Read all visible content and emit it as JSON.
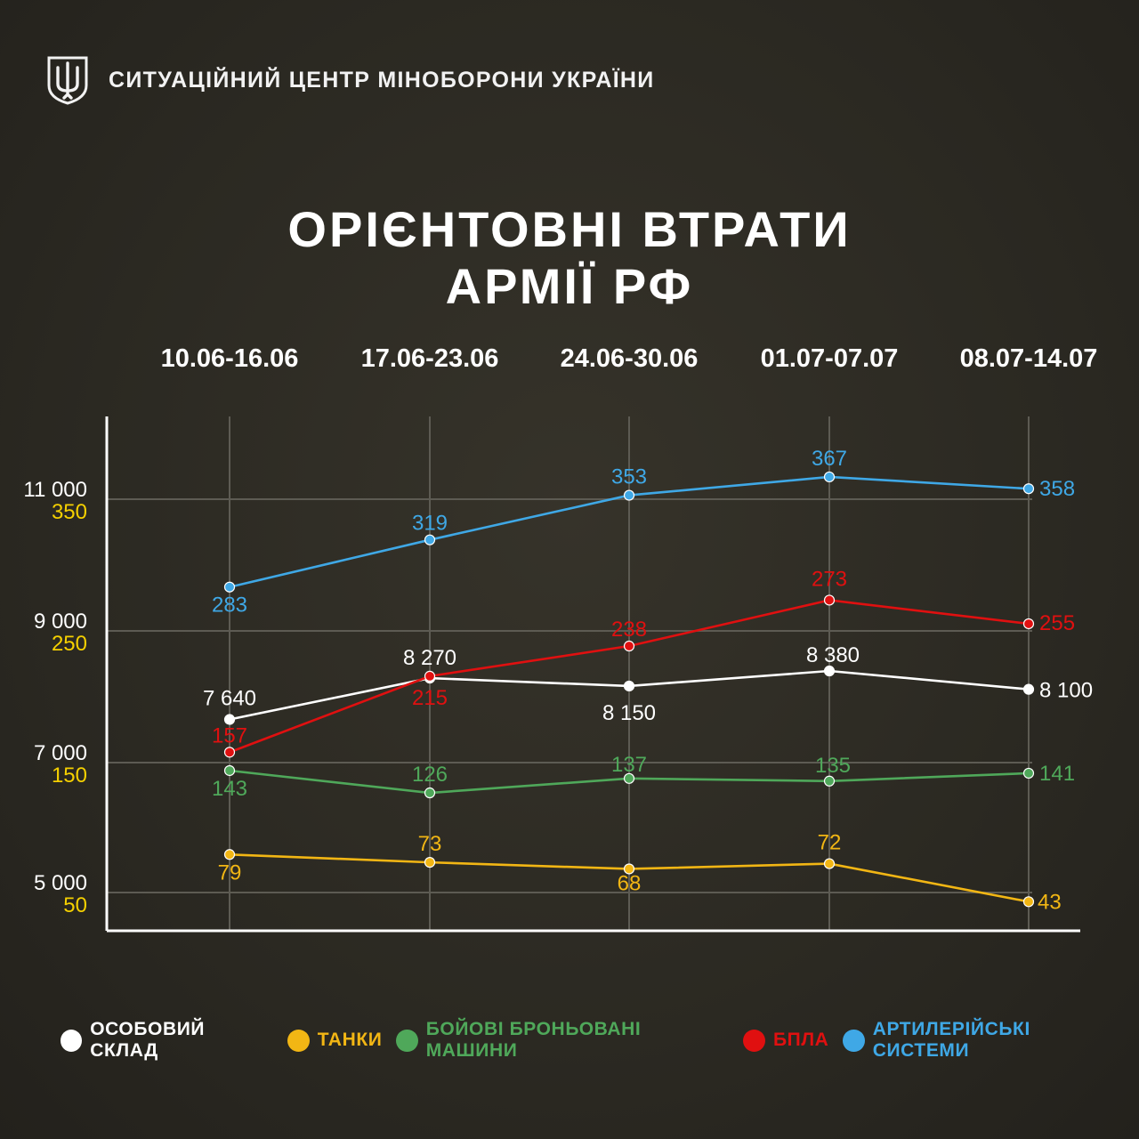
{
  "header": {
    "org_name": "СИТУАЦІЙНИЙ ЦЕНТР МІНОБОРОНИ УКРАЇНИ",
    "emblem_icon": "trident-shield-icon"
  },
  "title": {
    "line1": "ОРІЄНТОВНІ ВТРАТИ",
    "line2": "АРМІЇ РФ"
  },
  "chart_data": {
    "type": "line",
    "categories": [
      "10.06-16.06",
      "17.06-23.06",
      "24.06-30.06",
      "01.07-07.07",
      "08.07-14.07"
    ],
    "y_axis_primary": {
      "ticks": [
        "11 000",
        "9 000",
        "7 000",
        "5 000"
      ],
      "color": "#ffffff"
    },
    "y_axis_secondary": {
      "ticks": [
        "350",
        "250",
        "150",
        "50"
      ],
      "color": "#f5d000"
    },
    "grid": true,
    "legend_position": "bottom",
    "series": [
      {
        "name": "ОСОБОВИЙ СКЛАД",
        "color": "#ffffff",
        "values": [
          7640,
          8270,
          8150,
          8380,
          8100
        ],
        "labels": [
          "7 640",
          "8 270",
          "8 150",
          "8 380",
          "8 100"
        ]
      },
      {
        "name": "ТАНКИ",
        "color": "#f2b614",
        "values": [
          79,
          73,
          68,
          72,
          43
        ],
        "labels": [
          "79",
          "73",
          "68",
          "72",
          "43"
        ]
      },
      {
        "name": "БОЙОВІ БРОНЬОВАНІ МАШИНИ",
        "color": "#4fa85a",
        "values": [
          143,
          126,
          137,
          135,
          141
        ],
        "labels": [
          "143",
          "126",
          "137",
          "135",
          "141"
        ]
      },
      {
        "name": "БПЛА",
        "color": "#e01010",
        "values": [
          157,
          215,
          238,
          273,
          255
        ],
        "labels": [
          "157",
          "215",
          "238",
          "273",
          "255"
        ]
      },
      {
        "name": "АРТИЛЕРІЙСЬКІ СИСТЕМИ",
        "color": "#3fa8e6",
        "values": [
          283,
          319,
          353,
          367,
          358
        ],
        "labels": [
          "283",
          "319",
          "353",
          "367",
          "358"
        ]
      }
    ]
  }
}
